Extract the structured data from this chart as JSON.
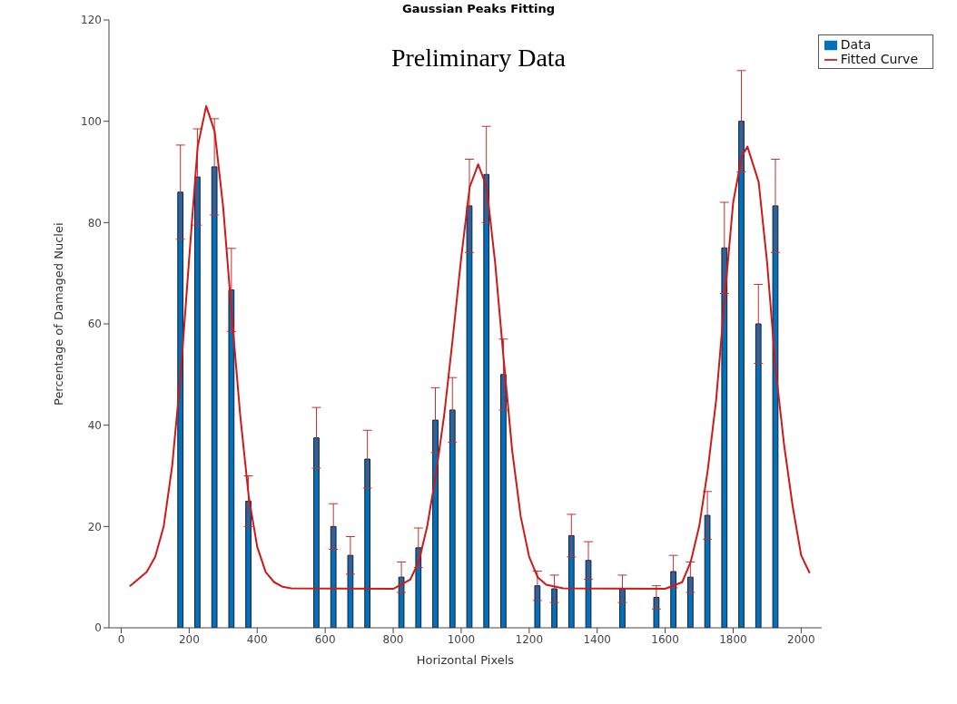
{
  "chart_data": {
    "type": "bar",
    "title": "Gaussian Peaks Fitting",
    "subtitle": "Preliminary Data",
    "xlabel": "Horizontal Pixels",
    "ylabel": "Percentage of Damaged Nuclei",
    "x": [
      175,
      225,
      275,
      325,
      375,
      575,
      625,
      675,
      725,
      825,
      875,
      925,
      975,
      1025,
      1075,
      1125,
      1225,
      1275,
      1325,
      1375,
      1475,
      1575,
      1625,
      1675,
      1725,
      1775,
      1825,
      1875,
      1925
    ],
    "series": [
      {
        "name": "Data",
        "color": "#0072bd",
        "values": [
          86,
          89,
          91,
          66.7,
          25,
          37.5,
          20,
          14.3,
          33.3,
          10,
          15.8,
          41,
          43,
          83.3,
          89.5,
          50,
          8.3,
          7.7,
          18.2,
          13.3,
          7.7,
          6,
          11.1,
          10,
          22.2,
          75,
          100,
          60,
          83.3
        ],
        "errors": [
          9.3,
          9.5,
          9.5,
          8.2,
          5,
          6,
          4.5,
          3.7,
          5.7,
          3,
          3.9,
          6.4,
          6.4,
          9.2,
          9.5,
          7,
          2.9,
          2.7,
          4.2,
          3.7,
          2.7,
          2.3,
          3.2,
          3,
          4.7,
          9,
          10,
          7.8,
          9.2
        ]
      },
      {
        "name": "Fitted Curve",
        "type": "line",
        "color": "#d01818",
        "x": [
          25,
          75,
          100,
          125,
          150,
          175,
          200,
          225,
          250,
          275,
          300,
          325,
          350,
          375,
          400,
          425,
          450,
          475,
          500,
          800,
          850,
          875,
          900,
          925,
          950,
          975,
          1000,
          1025,
          1050,
          1075,
          1100,
          1125,
          1150,
          1175,
          1200,
          1225,
          1250,
          1300,
          1600,
          1650,
          1675,
          1700,
          1725,
          1750,
          1775,
          1800,
          1825,
          1842,
          1875,
          1900,
          1925,
          1950,
          1975,
          2000,
          2025
        ],
        "values": [
          8.2,
          11,
          14,
          20,
          32,
          50,
          73,
          95,
          103,
          98,
          83,
          62,
          42,
          26,
          16,
          11,
          9,
          8.1,
          7.8,
          7.7,
          9.5,
          13,
          20,
          30,
          42,
          57,
          73,
          87,
          91.5,
          87,
          72,
          53,
          35,
          22,
          14,
          10,
          8.5,
          7.8,
          7.7,
          9,
          13,
          20,
          31,
          45,
          65,
          84,
          93,
          95,
          88,
          72,
          51,
          36,
          24,
          14.3,
          10.8
        ]
      }
    ],
    "xlim": [
      -36,
      2060
    ],
    "xticks": [
      0,
      200,
      400,
      600,
      800,
      1000,
      1200,
      1400,
      1600,
      1800,
      2000
    ],
    "ylim": [
      0,
      120
    ],
    "yticks": [
      0,
      20,
      40,
      60,
      80,
      100,
      120
    ],
    "grid": false,
    "legend": "top right",
    "line_style": "solid",
    "marker": "none"
  }
}
